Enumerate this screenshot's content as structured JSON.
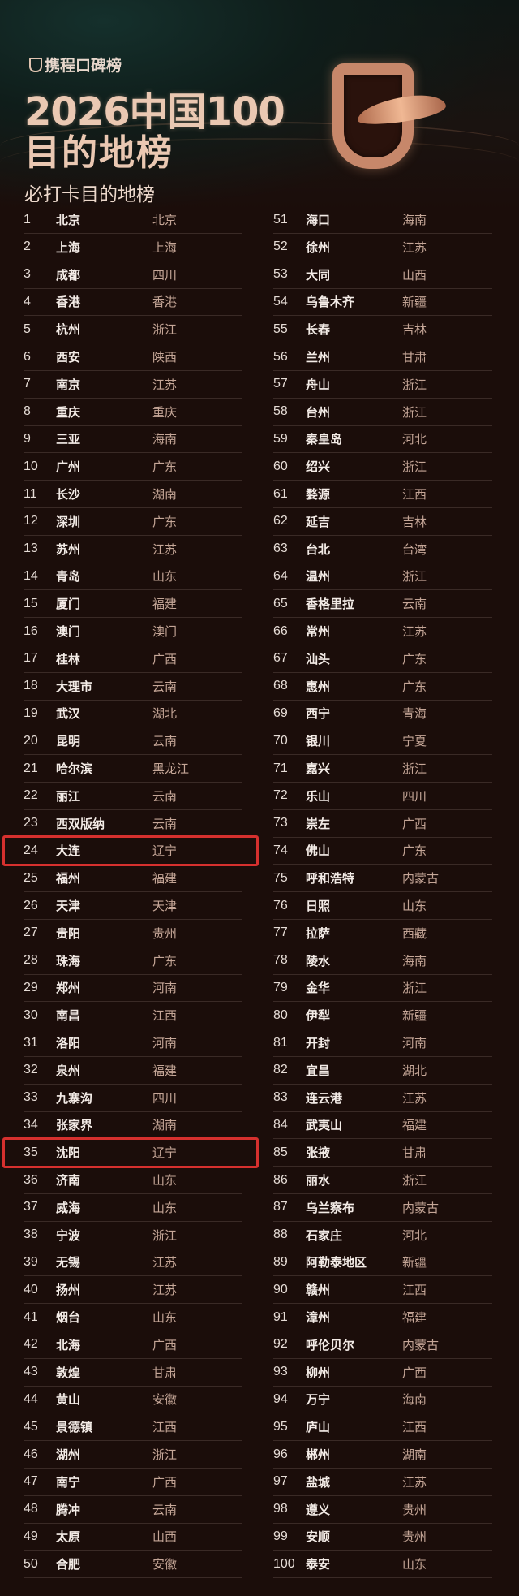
{
  "header": {
    "brand": "携程口碑榜",
    "title_line1": "2026中国100",
    "title_line2": "目的地榜",
    "subtitle": "必打卡目的地榜"
  },
  "colors": {
    "background": "#1b0d0a",
    "title": "#eac8b2",
    "province": "#c5a697",
    "highlight": "#d6302e"
  },
  "highlighted_ranks": [
    24,
    35
  ],
  "rankings": [
    [
      "1",
      "北京",
      "北京"
    ],
    [
      "2",
      "上海",
      "上海"
    ],
    [
      "3",
      "成都",
      "四川"
    ],
    [
      "4",
      "香港",
      "香港"
    ],
    [
      "5",
      "杭州",
      "浙江"
    ],
    [
      "6",
      "西安",
      "陕西"
    ],
    [
      "7",
      "南京",
      "江苏"
    ],
    [
      "8",
      "重庆",
      "重庆"
    ],
    [
      "9",
      "三亚",
      "海南"
    ],
    [
      "10",
      "广州",
      "广东"
    ],
    [
      "11",
      "长沙",
      "湖南"
    ],
    [
      "12",
      "深圳",
      "广东"
    ],
    [
      "13",
      "苏州",
      "江苏"
    ],
    [
      "14",
      "青岛",
      "山东"
    ],
    [
      "15",
      "厦门",
      "福建"
    ],
    [
      "16",
      "澳门",
      "澳门"
    ],
    [
      "17",
      "桂林",
      "广西"
    ],
    [
      "18",
      "大理市",
      "云南"
    ],
    [
      "19",
      "武汉",
      "湖北"
    ],
    [
      "20",
      "昆明",
      "云南"
    ],
    [
      "21",
      "哈尔滨",
      "黑龙江"
    ],
    [
      "22",
      "丽江",
      "云南"
    ],
    [
      "23",
      "西双版纳",
      "云南"
    ],
    [
      "24",
      "大连",
      "辽宁"
    ],
    [
      "25",
      "福州",
      "福建"
    ],
    [
      "26",
      "天津",
      "天津"
    ],
    [
      "27",
      "贵阳",
      "贵州"
    ],
    [
      "28",
      "珠海",
      "广东"
    ],
    [
      "29",
      "郑州",
      "河南"
    ],
    [
      "30",
      "南昌",
      "江西"
    ],
    [
      "31",
      "洛阳",
      "河南"
    ],
    [
      "32",
      "泉州",
      "福建"
    ],
    [
      "33",
      "九寨沟",
      "四川"
    ],
    [
      "34",
      "张家界",
      "湖南"
    ],
    [
      "35",
      "沈阳",
      "辽宁"
    ],
    [
      "36",
      "济南",
      "山东"
    ],
    [
      "37",
      "威海",
      "山东"
    ],
    [
      "38",
      "宁波",
      "浙江"
    ],
    [
      "39",
      "无锡",
      "江苏"
    ],
    [
      "40",
      "扬州",
      "江苏"
    ],
    [
      "41",
      "烟台",
      "山东"
    ],
    [
      "42",
      "北海",
      "广西"
    ],
    [
      "43",
      "敦煌",
      "甘肃"
    ],
    [
      "44",
      "黄山",
      "安徽"
    ],
    [
      "45",
      "景德镇",
      "江西"
    ],
    [
      "46",
      "湖州",
      "浙江"
    ],
    [
      "47",
      "南宁",
      "广西"
    ],
    [
      "48",
      "腾冲",
      "云南"
    ],
    [
      "49",
      "太原",
      "山西"
    ],
    [
      "50",
      "合肥",
      "安徽"
    ],
    [
      "51",
      "海口",
      "海南"
    ],
    [
      "52",
      "徐州",
      "江苏"
    ],
    [
      "53",
      "大同",
      "山西"
    ],
    [
      "54",
      "乌鲁木齐",
      "新疆"
    ],
    [
      "55",
      "长春",
      "吉林"
    ],
    [
      "56",
      "兰州",
      "甘肃"
    ],
    [
      "57",
      "舟山",
      "浙江"
    ],
    [
      "58",
      "台州",
      "浙江"
    ],
    [
      "59",
      "秦皇岛",
      "河北"
    ],
    [
      "60",
      "绍兴",
      "浙江"
    ],
    [
      "61",
      "婺源",
      "江西"
    ],
    [
      "62",
      "延吉",
      "吉林"
    ],
    [
      "63",
      "台北",
      "台湾"
    ],
    [
      "64",
      "温州",
      "浙江"
    ],
    [
      "65",
      "香格里拉",
      "云南"
    ],
    [
      "66",
      "常州",
      "江苏"
    ],
    [
      "67",
      "汕头",
      "广东"
    ],
    [
      "68",
      "惠州",
      "广东"
    ],
    [
      "69",
      "西宁",
      "青海"
    ],
    [
      "70",
      "银川",
      "宁夏"
    ],
    [
      "71",
      "嘉兴",
      "浙江"
    ],
    [
      "72",
      "乐山",
      "四川"
    ],
    [
      "73",
      "崇左",
      "广西"
    ],
    [
      "74",
      "佛山",
      "广东"
    ],
    [
      "75",
      "呼和浩特",
      "内蒙古"
    ],
    [
      "76",
      "日照",
      "山东"
    ],
    [
      "77",
      "拉萨",
      "西藏"
    ],
    [
      "78",
      "陵水",
      "海南"
    ],
    [
      "79",
      "金华",
      "浙江"
    ],
    [
      "80",
      "伊犁",
      "新疆"
    ],
    [
      "81",
      "开封",
      "河南"
    ],
    [
      "82",
      "宜昌",
      "湖北"
    ],
    [
      "83",
      "连云港",
      "江苏"
    ],
    [
      "84",
      "武夷山",
      "福建"
    ],
    [
      "85",
      "张掖",
      "甘肃"
    ],
    [
      "86",
      "丽水",
      "浙江"
    ],
    [
      "87",
      "乌兰察布",
      "内蒙古"
    ],
    [
      "88",
      "石家庄",
      "河北"
    ],
    [
      "89",
      "阿勒泰地区",
      "新疆"
    ],
    [
      "90",
      "赣州",
      "江西"
    ],
    [
      "91",
      "漳州",
      "福建"
    ],
    [
      "92",
      "呼伦贝尔",
      "内蒙古"
    ],
    [
      "93",
      "柳州",
      "广西"
    ],
    [
      "94",
      "万宁",
      "海南"
    ],
    [
      "95",
      "庐山",
      "江西"
    ],
    [
      "96",
      "郴州",
      "湖南"
    ],
    [
      "97",
      "盐城",
      "江苏"
    ],
    [
      "98",
      "遵义",
      "贵州"
    ],
    [
      "99",
      "安顺",
      "贵州"
    ],
    [
      "100",
      "泰安",
      "山东"
    ]
  ]
}
